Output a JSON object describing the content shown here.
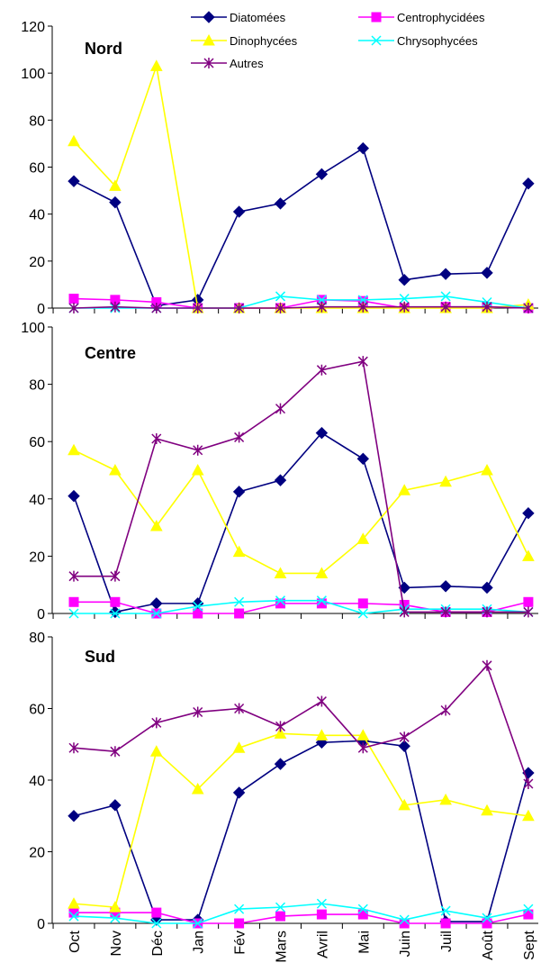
{
  "chart_data": {
    "type": "line",
    "categories": [
      "Oct",
      "Nov",
      "Déc",
      "Jan",
      "Fév",
      "Mars",
      "Avril",
      "Mai",
      "Juin",
      "Juil",
      "Août",
      "Sept"
    ],
    "legend": {
      "placement": "top",
      "entries": [
        {
          "name": "Diatomées",
          "color": "#000080",
          "marker": "diamond"
        },
        {
          "name": "Centrophycidées",
          "color": "#ff00ff",
          "marker": "square"
        },
        {
          "name": "Dinophycées",
          "color": "#ffff00",
          "marker": "triangle"
        },
        {
          "name": "Chrysophycées",
          "color": "#00ffff",
          "marker": "x"
        },
        {
          "name": "Autres",
          "color": "#800080",
          "marker": "star"
        }
      ]
    },
    "panels": [
      {
        "title": "Nord",
        "ylim": [
          0,
          120
        ],
        "yticks": [
          "0",
          "20",
          "40",
          "60",
          "80",
          "100",
          "120"
        ],
        "series": [
          {
            "name": "Diatomées",
            "values": [
              54,
              45,
              1,
              3.5,
              41,
              44.5,
              57,
              68,
              12,
              14.5,
              15,
              53
            ]
          },
          {
            "name": "Centrophycidées",
            "values": [
              4,
              3.5,
              2.5,
              0,
              0,
              0,
              3.5,
              3,
              0,
              0.5,
              0.5,
              0
            ]
          },
          {
            "name": "Dinophycées",
            "values": [
              71,
              52,
              103,
              0,
              0,
              0,
              0,
              0,
              0,
              0,
              0,
              1.5
            ]
          },
          {
            "name": "Chrysophycées",
            "values": [
              0,
              0,
              0,
              0,
              0,
              5,
              3.5,
              3.5,
              4,
              5,
              2.5,
              0
            ]
          },
          {
            "name": "Autres",
            "values": [
              0,
              0.5,
              0,
              0,
              0,
              0,
              0.5,
              0.5,
              0.5,
              0.5,
              0.5,
              0
            ]
          }
        ]
      },
      {
        "title": "Centre",
        "ylim": [
          0,
          100
        ],
        "yticks": [
          "0",
          "20",
          "40",
          "60",
          "80",
          "100"
        ],
        "series": [
          {
            "name": "Diatomées",
            "values": [
              41,
              0.5,
              3.5,
              3.5,
              42.5,
              46.5,
              63,
              54,
              9,
              9.5,
              9,
              35
            ]
          },
          {
            "name": "Centrophycidées",
            "values": [
              4,
              4,
              0,
              0,
              0,
              3.5,
              3.5,
              3.5,
              3,
              0.5,
              0.5,
              4
            ]
          },
          {
            "name": "Dinophycées",
            "values": [
              57,
              50,
              30.5,
              50,
              21.5,
              14,
              14,
              26,
              43,
              46,
              50,
              20
            ]
          },
          {
            "name": "Chrysophycées",
            "values": [
              0,
              0,
              0,
              2.5,
              4,
              4.5,
              4.5,
              0,
              1.5,
              1.5,
              1.5,
              0.5
            ]
          },
          {
            "name": "Autres",
            "values": [
              13,
              13,
              61,
              57,
              61.5,
              71.5,
              85,
              88,
              0.5,
              0.5,
              0.5,
              0.5
            ]
          }
        ]
      },
      {
        "title": "Sud",
        "ylim": [
          0,
          80
        ],
        "yticks": [
          "0",
          "20",
          "40",
          "60",
          "80"
        ],
        "series": [
          {
            "name": "Diatomées",
            "values": [
              30,
              33,
              1,
              1,
              36.5,
              44.5,
              50.5,
              51,
              49.5,
              0.5,
              0.5,
              42
            ]
          },
          {
            "name": "Centrophycidées",
            "values": [
              3,
              3,
              3,
              0,
              0,
              2,
              2.5,
              2.5,
              0,
              0,
              0,
              2.5
            ]
          },
          {
            "name": "Dinophycées",
            "values": [
              5.5,
              4.5,
              48,
              37.5,
              49,
              53,
              52.5,
              52.5,
              33,
              34.5,
              31.5,
              30
            ]
          },
          {
            "name": "Chrysophycées",
            "values": [
              2,
              1.5,
              0,
              0,
              4,
              4.5,
              5.5,
              4,
              1,
              3.5,
              1.5,
              4
            ]
          },
          {
            "name": "Autres",
            "values": [
              49,
              48,
              56,
              59,
              60,
              55,
              62,
              49,
              52,
              59.5,
              72,
              39
            ]
          }
        ]
      }
    ]
  }
}
